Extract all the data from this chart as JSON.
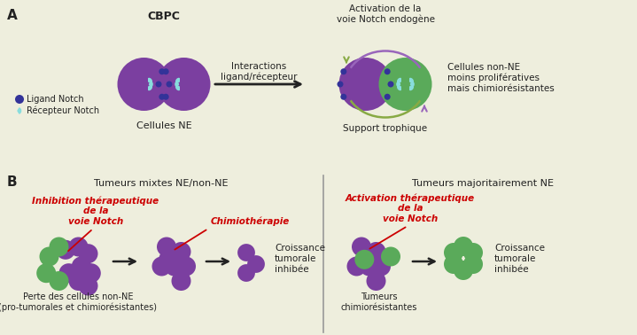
{
  "bg_color": "#eeeedd",
  "purple_color": "#7b3fa0",
  "green_color": "#5aaa5a",
  "cyan_color": "#88dddd",
  "dark_blue_color": "#333399",
  "red_color": "#cc0000",
  "dark_color": "#222222",
  "label_A": "A",
  "label_B": "B",
  "title_CBPC": "CBPC",
  "label_cellules_NE": "Cellules NE",
  "label_interactions": "Interactions\nligand/récepteur",
  "label_activation_top": "Activation de la\nvoie Notch endogène",
  "label_non_NE": "Cellules non-NE\nmoins prolifératives\nmais chimiorésistantes",
  "label_support": "Support trophique",
  "legend_ligand": "Ligand Notch",
  "legend_recepteur": "Récepteur Notch",
  "label_tumeurs_mixtes": "Tumeurs mixtes NE/non-NE",
  "label_tumeurs_maj": "Tumeurs majoritairement NE",
  "label_inhibition": "Inhibition thérapeutique\nde la\nvoie Notch",
  "label_chimio": "Chimiothérapie",
  "label_activation_ther": "Activation thérapeutique\nde la\nvoie Notch",
  "label_perte": "Perte des cellules non-NE\n(pro-tumorales et chimiorésistantes)",
  "label_croissance1": "Croissance\ntumorale\ninhibée",
  "label_croissance2": "Croissance\ntumorale\ninhibée",
  "label_tumeurs_chimo": "Tumeurs\nchimiorésistantes",
  "arrow_green": "#88aa44",
  "arrow_purple": "#9966bb"
}
